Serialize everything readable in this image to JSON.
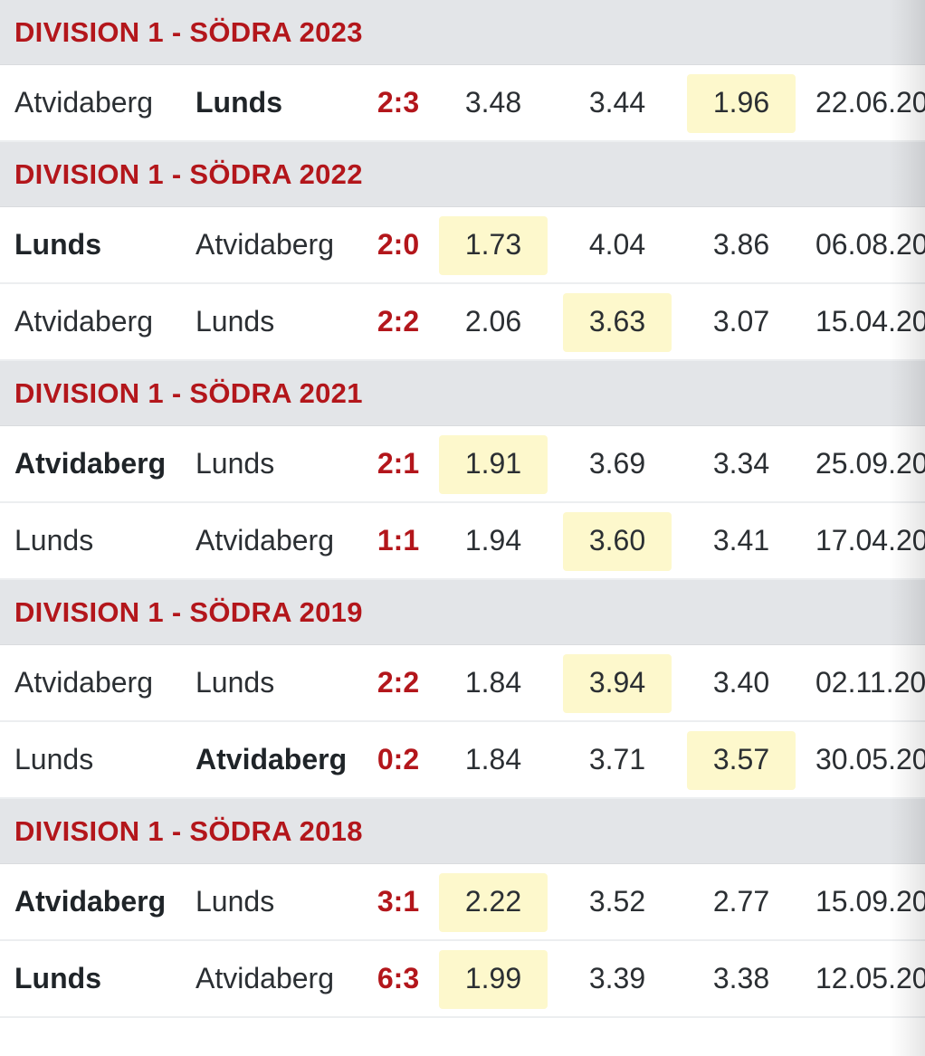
{
  "highlight_color": "#fdf8cc",
  "accent_color": "#b3161b",
  "sections": [
    {
      "title": "DIVISION 1 - SÖDRA 2023",
      "matches": [
        {
          "home": "Atvidaberg",
          "away": "Lunds",
          "winner": "away",
          "score": "2:3",
          "odds": [
            "3.48",
            "3.44",
            "1.96"
          ],
          "highlight": 2,
          "date": "22.06.20"
        }
      ]
    },
    {
      "title": "DIVISION 1 - SÖDRA 2022",
      "matches": [
        {
          "home": "Lunds",
          "away": "Atvidaberg",
          "winner": "home",
          "score": "2:0",
          "odds": [
            "1.73",
            "4.04",
            "3.86"
          ],
          "highlight": 0,
          "date": "06.08.20"
        },
        {
          "home": "Atvidaberg",
          "away": "Lunds",
          "winner": "none",
          "score": "2:2",
          "odds": [
            "2.06",
            "3.63",
            "3.07"
          ],
          "highlight": 1,
          "date": "15.04.20"
        }
      ]
    },
    {
      "title": "DIVISION 1 - SÖDRA 2021",
      "matches": [
        {
          "home": "Atvidaberg",
          "away": "Lunds",
          "winner": "home",
          "score": "2:1",
          "odds": [
            "1.91",
            "3.69",
            "3.34"
          ],
          "highlight": 0,
          "date": "25.09.20"
        },
        {
          "home": "Lunds",
          "away": "Atvidaberg",
          "winner": "none",
          "score": "1:1",
          "odds": [
            "1.94",
            "3.60",
            "3.41"
          ],
          "highlight": 1,
          "date": "17.04.20"
        }
      ]
    },
    {
      "title": "DIVISION 1 - SÖDRA 2019",
      "matches": [
        {
          "home": "Atvidaberg",
          "away": "Lunds",
          "winner": "none",
          "score": "2:2",
          "odds": [
            "1.84",
            "3.94",
            "3.40"
          ],
          "highlight": 1,
          "date": "02.11.20"
        },
        {
          "home": "Lunds",
          "away": "Atvidaberg",
          "winner": "away",
          "score": "0:2",
          "odds": [
            "1.84",
            "3.71",
            "3.57"
          ],
          "highlight": 2,
          "date": "30.05.20"
        }
      ]
    },
    {
      "title": "DIVISION 1 - SÖDRA 2018",
      "matches": [
        {
          "home": "Atvidaberg",
          "away": "Lunds",
          "winner": "home",
          "score": "3:1",
          "odds": [
            "2.22",
            "3.52",
            "2.77"
          ],
          "highlight": 0,
          "date": "15.09.20"
        },
        {
          "home": "Lunds",
          "away": "Atvidaberg",
          "winner": "home",
          "score": "6:3",
          "odds": [
            "1.99",
            "3.39",
            "3.38"
          ],
          "highlight": 0,
          "date": "12.05.20"
        }
      ]
    }
  ]
}
